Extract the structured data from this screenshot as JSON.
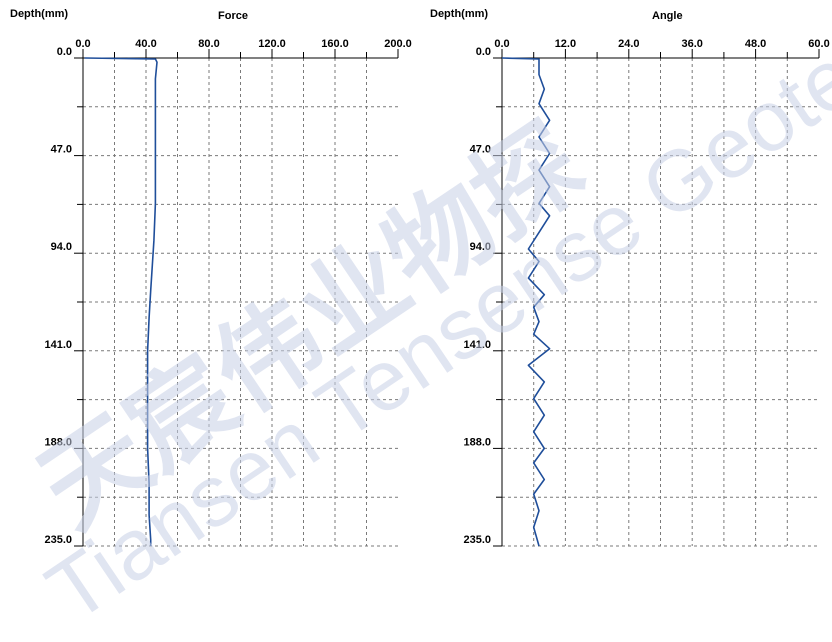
{
  "chart_data": [
    {
      "type": "line",
      "title": "Force",
      "ylabel": "Depth(mm)",
      "xlim": [
        0,
        200
      ],
      "ylim": [
        0,
        235
      ],
      "x_ticks": [
        "0.0",
        "40.0",
        "80.0",
        "120.0",
        "160.0",
        "200.0"
      ],
      "y_ticks": [
        "0.0",
        "47.0",
        "94.0",
        "141.0",
        "188.0",
        "235.0"
      ],
      "grid": true,
      "series": [
        {
          "color": "#1f4e9a",
          "points": [
            [
              1,
              0
            ],
            [
              46,
              0.5
            ],
            [
              47,
              2
            ],
            [
              46,
              10
            ],
            [
              46,
              25
            ],
            [
              46,
              47
            ],
            [
              46,
              70
            ],
            [
              45,
              88
            ],
            [
              44,
              100
            ],
            [
              43,
              112
            ],
            [
              42,
              125
            ],
            [
              41,
              141
            ],
            [
              41,
              160
            ],
            [
              41,
              188
            ],
            [
              42,
              205
            ],
            [
              42,
              220
            ],
            [
              43,
              232
            ],
            [
              43,
              235
            ]
          ]
        }
      ]
    },
    {
      "type": "line",
      "title": "Angle",
      "ylabel": "Depth(mm)",
      "xlim": [
        0,
        60
      ],
      "ylim": [
        0,
        235
      ],
      "x_ticks": [
        "0.0",
        "12.0",
        "24.0",
        "36.0",
        "48.0",
        "60.0"
      ],
      "y_ticks": [
        "0.0",
        "47.0",
        "94.0",
        "141.0",
        "188.0",
        "235.0"
      ],
      "grid": true,
      "series": [
        {
          "color": "#1f4e9a",
          "points": [
            [
              0,
              0
            ],
            [
              7,
              0.5
            ],
            [
              7,
              4
            ],
            [
              7,
              8
            ],
            [
              8,
              15
            ],
            [
              7,
              22
            ],
            [
              9,
              30
            ],
            [
              7,
              38
            ],
            [
              9,
              46
            ],
            [
              7,
              54
            ],
            [
              9,
              62
            ],
            [
              7,
              70
            ],
            [
              9,
              76
            ],
            [
              7,
              84
            ],
            [
              5,
              92
            ],
            [
              7,
              98
            ],
            [
              5,
              106
            ],
            [
              8,
              114
            ],
            [
              6,
              120
            ],
            [
              7,
              127
            ],
            [
              6,
              133
            ],
            [
              9,
              140
            ],
            [
              5,
              148
            ],
            [
              8,
              156
            ],
            [
              6,
              164
            ],
            [
              8,
              172
            ],
            [
              6,
              180
            ],
            [
              8,
              188
            ],
            [
              6,
              195
            ],
            [
              8,
              203
            ],
            [
              6,
              210
            ],
            [
              7,
              218
            ],
            [
              6,
              226
            ],
            [
              7,
              235
            ]
          ]
        }
      ]
    }
  ],
  "watermark": {
    "line1": "天宸伟业物探",
    "line2": "Tiansen Tensense Geotech",
    "color": "#c8d0e6"
  }
}
